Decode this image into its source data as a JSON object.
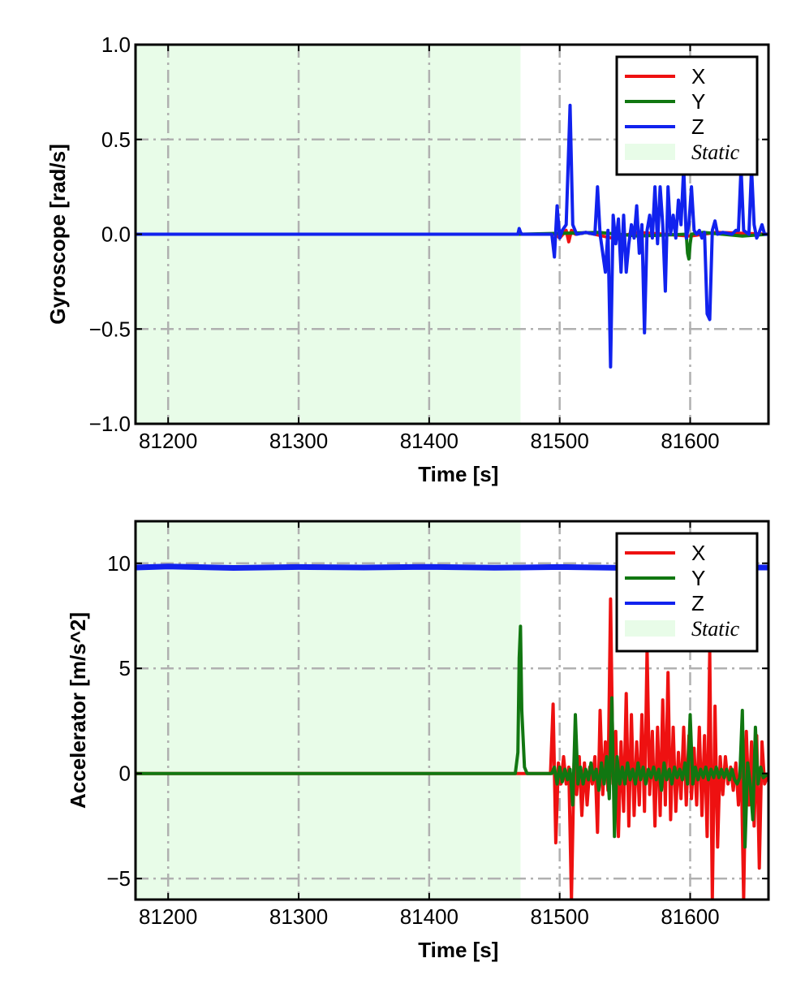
{
  "chart_data": [
    {
      "type": "line",
      "xlabel": "Time [s]",
      "ylabel": "Gyroscope [rad/s]",
      "xlim": [
        81175,
        81660
      ],
      "ylim": [
        -1.0,
        1.0
      ],
      "xticks": [
        81200,
        81300,
        81400,
        81500,
        81600
      ],
      "xtick_labels": [
        "81200",
        "81300",
        "81400",
        "81500",
        "81600"
      ],
      "yticks": [
        -1.0,
        -0.5,
        0.0,
        0.5,
        1.0
      ],
      "ytick_labels": [
        "−1.0",
        "−0.5",
        "0.0",
        "0.5",
        "1.0"
      ],
      "grid": true,
      "legend_position": "top-right",
      "static_region": {
        "label": "Static",
        "x0": 81175,
        "x1": 81470,
        "color": "#e8fce8"
      },
      "series": [
        {
          "name": "X",
          "color": "#ee1111",
          "x": [
            81175,
            81470,
            81497,
            81500,
            81505,
            81507,
            81509,
            81512,
            81520,
            81540,
            81560,
            81600,
            81620,
            81660
          ],
          "y": [
            0,
            0,
            0,
            -0.02,
            0.02,
            -0.04,
            0.02,
            0,
            0.01,
            -0.02,
            0.01,
            -0.01,
            0.01,
            0
          ]
        },
        {
          "name": "Y",
          "color": "#117711",
          "x": [
            81175,
            81470,
            81530,
            81560,
            81597,
            81598,
            81599,
            81600,
            81601,
            81610,
            81640,
            81660
          ],
          "y": [
            0,
            0,
            0.01,
            -0.01,
            0,
            -0.1,
            -0.13,
            -0.05,
            0,
            0.01,
            -0.01,
            0
          ]
        },
        {
          "name": "Z",
          "color": "#1122ee",
          "x": [
            81175,
            81468,
            81469,
            81470,
            81471,
            81494,
            81496,
            81498,
            81500,
            81502,
            81505,
            81508,
            81510,
            81513,
            81520,
            81527,
            81529,
            81531,
            81535,
            81537,
            81539,
            81541,
            81543,
            81545,
            81547,
            81549,
            81551,
            81553,
            81555,
            81557,
            81559,
            81561,
            81563,
            81565,
            81567,
            81569,
            81571,
            81573,
            81575,
            81577,
            81579,
            81581,
            81583,
            81585,
            81587,
            81589,
            81591,
            81593,
            81595,
            81597,
            81599,
            81601,
            81603,
            81605,
            81607,
            81609,
            81611,
            81613,
            81615,
            81617,
            81619,
            81621,
            81625,
            81632,
            81635,
            81637,
            81639,
            81641,
            81643,
            81645,
            81647,
            81649,
            81651,
            81653,
            81655,
            81657,
            81660
          ],
          "y": [
            0,
            0,
            0.03,
            0.01,
            0,
            0,
            -0.12,
            0.15,
            -0.02,
            0.02,
            0.05,
            0.68,
            0.05,
            0,
            0.01,
            0,
            0.25,
            0,
            -0.2,
            0.02,
            -0.7,
            0.1,
            -0.05,
            0.08,
            -0.2,
            0.1,
            -0.2,
            -0.05,
            0.05,
            -0.02,
            0.15,
            -0.1,
            0.05,
            -0.52,
            0.02,
            0.1,
            -0.02,
            0.25,
            -0.05,
            0.25,
            0.05,
            -0.3,
            0.25,
            0,
            0.1,
            -0.02,
            0.18,
            0.05,
            0.35,
            -0.02,
            0.05,
            0.25,
            0.02,
            0,
            0.02,
            -0.02,
            0.01,
            -0.42,
            -0.45,
            0.02,
            0.07,
            0,
            0.01,
            0,
            0.02,
            0.02,
            0.35,
            0.02,
            0.01,
            0,
            0.35,
            0.05,
            -0.02,
            0.01,
            0.05,
            0,
            0
          ]
        }
      ]
    },
    {
      "type": "line",
      "xlabel": "Time [s]",
      "ylabel": "Accelerator [m/s^2]",
      "xlim": [
        81175,
        81660
      ],
      "ylim": [
        -6,
        12
      ],
      "xticks": [
        81200,
        81300,
        81400,
        81500,
        81600
      ],
      "xtick_labels": [
        "81200",
        "81300",
        "81400",
        "81500",
        "81600"
      ],
      "yticks": [
        -5,
        0,
        5,
        10
      ],
      "ytick_labels": [
        "−5",
        "0",
        "5",
        "10"
      ],
      "grid": true,
      "legend_position": "top-right",
      "static_region": {
        "label": "Static",
        "x0": 81175,
        "x1": 81470,
        "color": "#e8fce8"
      },
      "series": [
        {
          "name": "X",
          "color": "#ee1111",
          "x": [
            81175,
            81493,
            81495,
            81497,
            81499,
            81501,
            81503,
            81505,
            81507,
            81509,
            81511,
            81513,
            81515,
            81517,
            81519,
            81521,
            81523,
            81525,
            81527,
            81529,
            81531,
            81533,
            81535,
            81537,
            81539,
            81541,
            81543,
            81545,
            81547,
            81549,
            81551,
            81553,
            81555,
            81557,
            81559,
            81561,
            81563,
            81565,
            81567,
            81569,
            81571,
            81573,
            81575,
            81577,
            81579,
            81581,
            81583,
            81585,
            81587,
            81589,
            81591,
            81593,
            81595,
            81597,
            81599,
            81601,
            81603,
            81605,
            81607,
            81609,
            81611,
            81613,
            81615,
            81617,
            81619,
            81621,
            81623,
            81625,
            81627,
            81629,
            81631,
            81633,
            81635,
            81637,
            81639,
            81641,
            81643,
            81645,
            81647,
            81649,
            81651,
            81653,
            81655,
            81657,
            81660
          ],
          "y": [
            0,
            0,
            3.3,
            -3.3,
            0.5,
            -0.5,
            0.8,
            -0.5,
            0.3,
            -6,
            0.5,
            -1,
            0.8,
            -2,
            0.5,
            -1.5,
            0.3,
            -0.5,
            0.8,
            -2.8,
            3,
            -1,
            1.5,
            -0.8,
            8.3,
            -0.5,
            2,
            -3,
            1.5,
            -1.8,
            3.8,
            -2.5,
            2.8,
            -2,
            1.5,
            -1.5,
            2.8,
            -1.8,
            5.9,
            -1,
            2,
            -2.5,
            2.2,
            -2,
            3.5,
            -1.5,
            4.8,
            -2.2,
            2.2,
            -1.8,
            1,
            -1.2,
            2.2,
            -1.5,
            1.8,
            -1.2,
            1.2,
            -1.5,
            2.2,
            -2,
            1.8,
            -3,
            5.8,
            -6,
            3.2,
            -3.5,
            0.8,
            -1,
            0.8,
            -0.5,
            0.3,
            -0.8,
            0.5,
            -1.5,
            1,
            -6,
            2,
            -1.5,
            1.5,
            -2.5,
            1.8,
            -4.5,
            1.5,
            -0.5,
            0
          ]
        },
        {
          "name": "Y",
          "color": "#117711",
          "x": [
            81175,
            81466,
            81468,
            81469,
            81470,
            81471,
            81473,
            81475,
            81494,
            81496,
            81498,
            81500,
            81502,
            81504,
            81506,
            81508,
            81510,
            81512,
            81514,
            81516,
            81518,
            81520,
            81522,
            81524,
            81526,
            81528,
            81530,
            81532,
            81534,
            81536,
            81538,
            81540,
            81542,
            81544,
            81546,
            81548,
            81550,
            81552,
            81554,
            81556,
            81558,
            81560,
            81562,
            81564,
            81566,
            81568,
            81570,
            81572,
            81574,
            81576,
            81578,
            81580,
            81582,
            81584,
            81586,
            81588,
            81590,
            81592,
            81594,
            81596,
            81598,
            81600,
            81602,
            81604,
            81606,
            81608,
            81610,
            81612,
            81614,
            81616,
            81618,
            81620,
            81622,
            81624,
            81626,
            81628,
            81630,
            81632,
            81634,
            81636,
            81638,
            81640,
            81642,
            81644,
            81646,
            81648,
            81650,
            81652,
            81654,
            81656,
            81660
          ],
          "y": [
            0,
            0,
            1,
            5.5,
            7.0,
            3,
            0.3,
            0,
            0,
            0.3,
            -0.5,
            0.3,
            -0.4,
            0.2,
            -0.3,
            0.2,
            -1.5,
            2.8,
            -0.5,
            0.3,
            -0.5,
            0.2,
            -0.3,
            0.5,
            -0.3,
            0.2,
            -0.8,
            0.5,
            -0.5,
            0.8,
            -1.2,
            3.6,
            -3,
            0.8,
            -0.5,
            0.3,
            -0.5,
            0.5,
            -0.3,
            0.2,
            -0.5,
            0.5,
            -0.3,
            0.3,
            -0.5,
            0.2,
            -0.2,
            0.3,
            -0.3,
            0.2,
            -0.8,
            0.5,
            -0.3,
            0.2,
            -0.5,
            0.3,
            -0.2,
            0.2,
            -0.3,
            0.5,
            -0.5,
            2.8,
            -0.5,
            0.3,
            -0.3,
            0.2,
            -0.2,
            0.3,
            -0.3,
            0.2,
            -0.2,
            0.3,
            -0.2,
            0.2,
            -0.2,
            0.2,
            -0.3,
            0.2,
            -0.3,
            -0.5,
            -0.2,
            3.0,
            -3.5,
            0.5,
            -0.5,
            -2.2,
            2.2,
            -0.5,
            0.3,
            -0.2,
            0
          ]
        },
        {
          "name": "Z",
          "color": "#1122ee",
          "x": [
            81175,
            81200,
            81250,
            81300,
            81350,
            81400,
            81450,
            81470,
            81500,
            81550,
            81600,
            81650,
            81660
          ],
          "y": [
            9.8,
            9.85,
            9.78,
            9.82,
            9.8,
            9.83,
            9.79,
            9.8,
            9.82,
            9.78,
            9.81,
            9.8,
            9.8
          ]
        }
      ]
    }
  ]
}
